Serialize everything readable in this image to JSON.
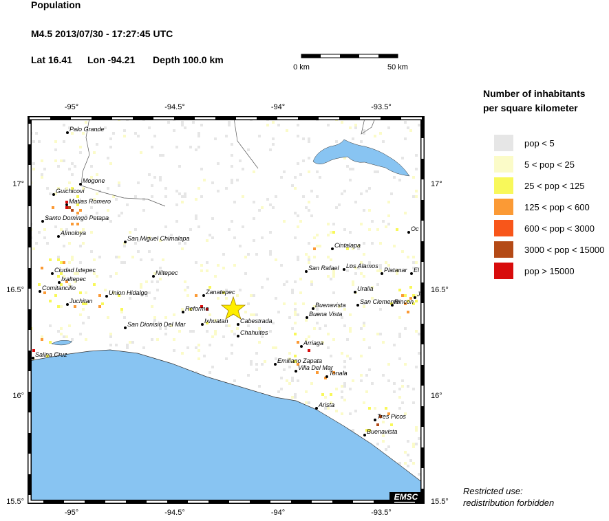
{
  "header": {
    "title": "Population",
    "event": "M4.5  2013/07/30 - 17:27:45 UTC",
    "lat": "Lat 16.41",
    "lon": "Lon -94.21",
    "depth": "Depth 100.0 km"
  },
  "scale": {
    "start": "0 km",
    "end": "50 km"
  },
  "legend": {
    "title_line1": "Number of inhabitants",
    "title_line2": "per square kilometer",
    "items": [
      {
        "label": "pop < 5",
        "color": "#e6e6e6"
      },
      {
        "label": "5 < pop < 25",
        "color": "#fbfbc8"
      },
      {
        "label": "25 < pop < 125",
        "color": "#f8f85a"
      },
      {
        "label": "125 < pop < 600",
        "color": "#fb9a35"
      },
      {
        "label": "600 < pop < 3000",
        "color": "#f8561a"
      },
      {
        "label": "3000 < pop < 15000",
        "color": "#b44a16"
      },
      {
        "label": "pop > 15000",
        "color": "#d80c0c"
      }
    ]
  },
  "axes": {
    "x_labels": [
      "-95°",
      "-94.5°",
      "-94°",
      "-93.5°"
    ],
    "y_labels": [
      "17°",
      "16.5°",
      "16°",
      "15.5°"
    ]
  },
  "places": [
    {
      "name": "Palo Grande"
    },
    {
      "name": "Mogone"
    },
    {
      "name": "Guichicovi"
    },
    {
      "name": "Matias Romero"
    },
    {
      "name": "Santo Domingo Petapa"
    },
    {
      "name": "Almoloya"
    },
    {
      "name": "San Miguel Chimalapa"
    },
    {
      "name": "Ciudad Ixtepec"
    },
    {
      "name": "Ixaltepec"
    },
    {
      "name": "Comitancillo"
    },
    {
      "name": "Juchitan"
    },
    {
      "name": "Union Hidalgo"
    },
    {
      "name": "Niltepec"
    },
    {
      "name": "Zanatepec"
    },
    {
      "name": "Reforma"
    },
    {
      "name": "Ixhuatan"
    },
    {
      "name": "San Dionisio Del Mar"
    },
    {
      "name": "Cabestrada"
    },
    {
      "name": "Chahuites"
    },
    {
      "name": "Salina Cruz"
    },
    {
      "name": "Arriaga"
    },
    {
      "name": "Emiliano Zapata"
    },
    {
      "name": "Villa Del Mar"
    },
    {
      "name": "Tonala"
    },
    {
      "name": "Arista"
    },
    {
      "name": "Tres Picos"
    },
    {
      "name": "Buenavista"
    },
    {
      "name": "Cintalapa"
    },
    {
      "name": "San Rafael"
    },
    {
      "name": "Los Alamos"
    },
    {
      "name": "Platanar"
    },
    {
      "name": "Uralia"
    },
    {
      "name": "Buenavista"
    },
    {
      "name": "San Clemente"
    },
    {
      "name": "Buena Vista"
    },
    {
      "name": "Rincon"
    },
    {
      "name": "Oc"
    },
    {
      "name": "El"
    },
    {
      "name": "Jo"
    }
  ],
  "footer": {
    "badge": "EMSC",
    "note_line1": "Restricted use:",
    "note_line2": "redistribution forbidden"
  }
}
